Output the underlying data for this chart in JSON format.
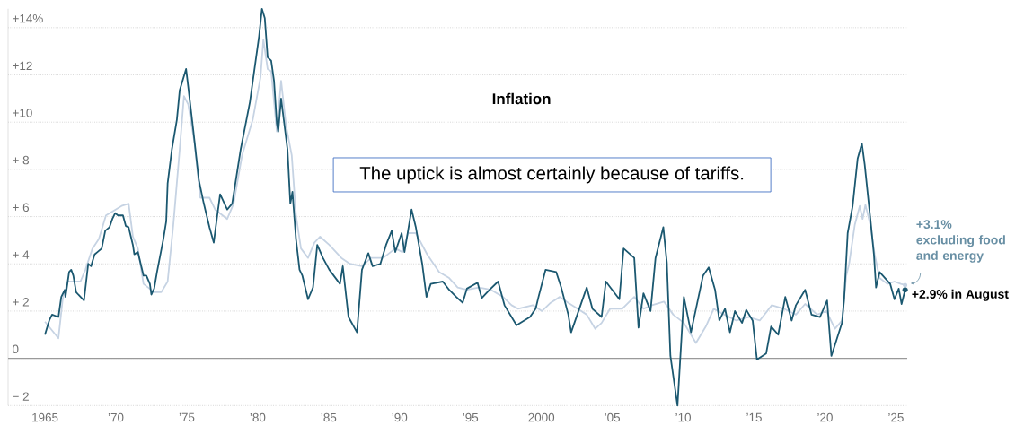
{
  "chart_data": {
    "type": "line",
    "title": "Inflation",
    "xlim": [
      1962.4,
      2025.8
    ],
    "ylim": [
      -2,
      14.8
    ],
    "xticks": [
      1965,
      {
        "value": 1970,
        "label": "’70"
      },
      {
        "value": 1975,
        "label": "’75"
      },
      {
        "value": 1980,
        "label": "’80"
      },
      {
        "value": 1985,
        "label": "’85"
      },
      {
        "value": 1990,
        "label": "’90"
      },
      {
        "value": 1995,
        "label": "’95"
      },
      2000,
      {
        "value": 2005,
        "label": "’05"
      },
      {
        "value": 2010,
        "label": "’10"
      },
      {
        "value": 2015,
        "label": "’15"
      },
      {
        "value": 2020,
        "label": "’20"
      },
      {
        "value": 2025,
        "label": "’25"
      }
    ],
    "yticks": [
      {
        "value": -2,
        "label": "− 2"
      },
      0,
      {
        "value": 2,
        "label": "+ 2"
      },
      {
        "value": 4,
        "label": "+ 4"
      },
      {
        "value": 6,
        "label": "+ 6"
      },
      {
        "value": 8,
        "label": "+ 8"
      },
      {
        "value": 10,
        "label": "+10"
      },
      {
        "value": 12,
        "label": "+12"
      },
      {
        "value": 14,
        "label": "+14%"
      }
    ],
    "grid": "y",
    "ref_lines": [
      {
        "axis": "y",
        "value": 0,
        "color": "#9a9a9a",
        "line_style": "solid"
      }
    ],
    "series": [
      {
        "color": "#1b5870",
        "x": [
          1965.0,
          1965.3,
          1965.5,
          1965.95,
          1966.15,
          1966.4,
          1966.45,
          1966.7,
          1966.85,
          1967.0,
          1967.2,
          1967.35,
          1967.75,
          1968.05,
          1968.25,
          1968.5,
          1968.7,
          1969.0,
          1969.25,
          1969.55,
          1969.75,
          1969.95,
          1970.15,
          1970.5,
          1970.7,
          1970.9,
          1971.2,
          1971.3,
          1971.55,
          1971.75,
          1971.95,
          1972.15,
          1972.4,
          1972.5,
          1972.7,
          1972.9,
          1973.35,
          1973.55,
          1973.65,
          1973.95,
          1974.3,
          1974.5,
          1974.95,
          1975.1,
          1975.45,
          1975.85,
          1976.2,
          1976.4,
          1976.6,
          1976.9,
          1977.15,
          1977.35,
          1977.85,
          1978.2,
          1978.8,
          1979.45,
          1979.75,
          1980.1,
          1980.3,
          1980.5,
          1980.7,
          1980.95,
          1981.15,
          1981.35,
          1981.45,
          1981.65,
          1982.1,
          1982.3,
          1982.45,
          1982.7,
          1982.95,
          1983.15,
          1983.55,
          1983.9,
          1984.2,
          1984.6,
          1985.05,
          1985.8,
          1986.0,
          1986.4,
          1987.0,
          1987.35,
          1987.8,
          1988.1,
          1988.65,
          1989.05,
          1989.45,
          1989.7,
          1990.15,
          1990.35,
          1990.85,
          1991.15,
          1991.6,
          1991.9,
          1992.2,
          1993.05,
          1993.5,
          1994.0,
          1994.45,
          1994.75,
          1995.5,
          1995.8,
          1996.35,
          1996.95,
          1997.4,
          1998.25,
          1999.2,
          1999.6,
          1999.8,
          2000.3,
          2001.05,
          2001.4,
          2001.9,
          2002.1,
          2003.2,
          2003.6,
          2004.25,
          2004.55,
          2005.5,
          2005.8,
          2006.55,
          2006.85,
          2007.2,
          2007.7,
          2008.05,
          2008.6,
          2008.85,
          2009.1,
          2009.6,
          2010.05,
          2010.55,
          2011.4,
          2011.8,
          2012.25,
          2012.55,
          2012.95,
          2013.3,
          2013.65,
          2014.15,
          2014.45,
          2014.9,
          2015.2,
          2015.85,
          2016.2,
          2016.7,
          2017.2,
          2017.65,
          2017.95,
          2018.6,
          2019.05,
          2019.65,
          2020.15,
          2020.45,
          2021.2,
          2021.35,
          2021.6,
          2021.95,
          2022.3,
          2022.6,
          2022.8,
          2023.2,
          2023.45,
          2023.6,
          2023.85,
          2024.6,
          2024.9,
          2025.2,
          2025.4,
          2025.65
        ],
        "values": [
          1.0,
          1.6,
          1.85,
          1.75,
          2.6,
          2.9,
          2.6,
          3.65,
          3.75,
          3.5,
          2.8,
          2.7,
          2.45,
          4.0,
          3.9,
          4.4,
          4.5,
          4.65,
          5.4,
          5.55,
          5.9,
          6.15,
          6.05,
          6.05,
          5.6,
          5.55,
          4.8,
          4.4,
          4.5,
          4.0,
          3.5,
          3.5,
          3.15,
          2.7,
          2.95,
          3.65,
          5.05,
          5.8,
          7.4,
          8.85,
          10.1,
          11.35,
          12.25,
          11.5,
          9.7,
          7.55,
          6.55,
          6.05,
          5.55,
          4.9,
          6.05,
          6.95,
          6.3,
          6.55,
          8.85,
          10.85,
          12.15,
          13.65,
          14.8,
          14.4,
          12.75,
          12.6,
          11.75,
          9.95,
          9.6,
          11.0,
          8.85,
          6.55,
          7.05,
          5.05,
          3.75,
          3.5,
          2.5,
          3.0,
          4.8,
          4.25,
          3.75,
          3.15,
          3.9,
          1.75,
          1.1,
          3.75,
          4.45,
          3.9,
          4.0,
          4.8,
          5.4,
          4.5,
          5.3,
          4.5,
          6.3,
          5.55,
          4.0,
          2.6,
          3.15,
          3.25,
          2.9,
          2.6,
          2.35,
          2.95,
          3.2,
          2.55,
          2.9,
          3.25,
          2.25,
          1.4,
          1.75,
          2.1,
          2.6,
          3.75,
          3.65,
          3.0,
          1.85,
          1.1,
          3.0,
          2.1,
          1.75,
          3.25,
          2.5,
          4.65,
          4.25,
          1.3,
          2.75,
          2.0,
          4.25,
          5.55,
          4.05,
          0.1,
          -2.0,
          2.6,
          1.1,
          3.5,
          3.85,
          2.9,
          1.6,
          2.1,
          1.1,
          2.0,
          1.5,
          2.05,
          1.6,
          -0.05,
          0.2,
          1.35,
          1.0,
          2.6,
          1.6,
          2.25,
          2.9,
          1.85,
          1.75,
          2.45,
          0.1,
          1.5,
          2.5,
          5.3,
          6.45,
          8.45,
          9.1,
          8.2,
          5.9,
          4.4,
          3.0,
          3.65,
          3.15,
          2.5,
          2.95,
          2.3,
          2.9
        ]
      },
      {
        "color": "#c6d3e3",
        "x": [
          1965.0,
          1965.95,
          1966.25,
          1966.6,
          1967.5,
          1967.85,
          1968.35,
          1968.8,
          1969.3,
          1970.4,
          1970.9,
          1971.2,
          1971.55,
          1971.95,
          1972.7,
          1973.2,
          1973.65,
          1974.05,
          1974.5,
          1974.8,
          1975.1,
          1975.55,
          1975.95,
          1976.6,
          1977.0,
          1977.85,
          1978.3,
          1978.9,
          1979.65,
          1980.2,
          1980.4,
          1980.7,
          1980.95,
          1981.35,
          1981.65,
          1982.0,
          1982.4,
          1982.7,
          1983.05,
          1983.55,
          1984.0,
          1984.4,
          1985.05,
          1985.9,
          1986.5,
          1987.35,
          1988.0,
          1988.85,
          1989.7,
          1990.2,
          1990.6,
          1991.15,
          1991.95,
          1992.8,
          1993.5,
          1994.1,
          1994.75,
          1995.6,
          1996.45,
          1997.3,
          1997.9,
          1998.35,
          1999.4,
          2000.05,
          2000.65,
          2001.3,
          2001.9,
          2002.55,
          2003.2,
          2003.8,
          2004.25,
          2004.85,
          2005.7,
          2006.55,
          2007.2,
          2007.8,
          2008.65,
          2009.3,
          2010.05,
          2010.9,
          2011.6,
          2012.15,
          2012.9,
          2013.75,
          2014.6,
          2015.4,
          2016.25,
          2017.1,
          2017.95,
          2018.6,
          2019.45,
          2020.1,
          2020.7,
          2021.2,
          2021.5,
          2021.7,
          2022.1,
          2022.45,
          2022.65,
          2022.85,
          2023.2,
          2023.5,
          2023.85,
          2024.4,
          2024.9,
          2025.35,
          2025.65
        ],
        "values": [
          1.55,
          0.85,
          2.5,
          3.25,
          3.25,
          3.75,
          4.65,
          5.05,
          6.05,
          6.45,
          6.55,
          5.15,
          4.65,
          3.15,
          2.8,
          2.8,
          3.25,
          5.65,
          8.85,
          11.1,
          10.75,
          9.1,
          6.8,
          6.8,
          6.3,
          5.9,
          6.55,
          8.6,
          10.1,
          11.9,
          13.5,
          12.25,
          12.15,
          9.6,
          11.75,
          9.85,
          8.6,
          6.05,
          4.65,
          4.25,
          4.9,
          5.15,
          4.8,
          4.25,
          4.0,
          3.9,
          4.25,
          4.25,
          4.65,
          4.5,
          5.3,
          5.3,
          4.4,
          3.65,
          3.4,
          3.0,
          2.9,
          3.0,
          2.9,
          2.6,
          2.25,
          2.1,
          2.25,
          2.0,
          2.35,
          2.6,
          2.35,
          2.1,
          1.85,
          1.25,
          1.5,
          2.1,
          2.1,
          2.6,
          2.1,
          2.25,
          2.4,
          1.85,
          1.5,
          0.65,
          1.35,
          2.1,
          1.85,
          1.6,
          1.75,
          1.6,
          2.25,
          2.1,
          1.85,
          2.3,
          1.85,
          2.0,
          1.25,
          1.6,
          3.5,
          4.0,
          5.65,
          6.45,
          5.9,
          6.5,
          5.65,
          4.4,
          3.4,
          3.15,
          3.25,
          3.15,
          3.1
        ]
      }
    ],
    "annotations": [
      "The uptick is almost certainly because of tariffs.",
      {
        "text": "+2.9% in August",
        "x": 2025.65,
        "y": 2.9
      },
      {
        "text": "+3.1% excluding food and energy",
        "x": 2025.65,
        "y": 3.1
      }
    ]
  }
}
